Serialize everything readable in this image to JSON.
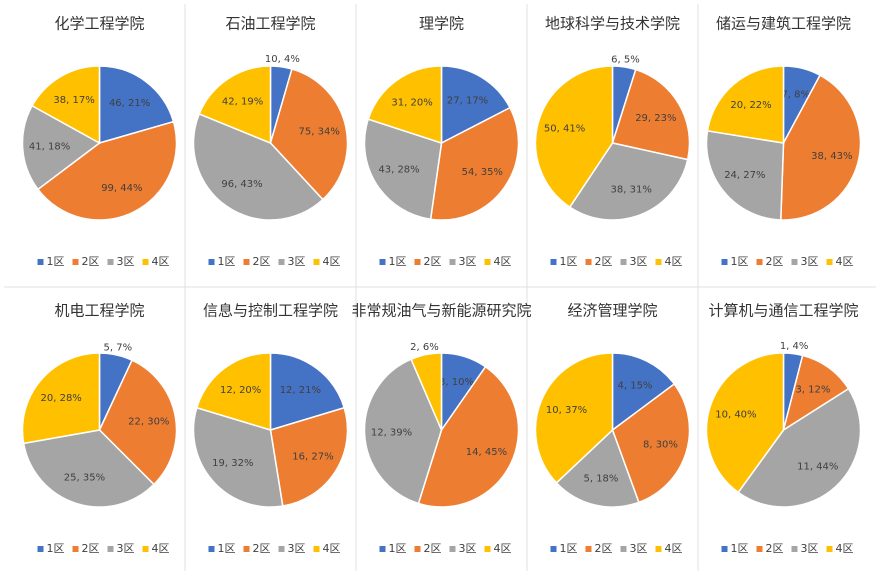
{
  "chart_data": [
    {
      "type": "pie",
      "title": "化学工程学院",
      "categories": [
        "1区",
        "2区",
        "3区",
        "4区"
      ],
      "values": [
        46,
        99,
        41,
        38
      ],
      "value_labels": [
        "46, 21%",
        "99, 44%",
        "41, 18%",
        "38, 17%"
      ],
      "colors": [
        "#4472c4",
        "#ed7d31",
        "#a5a5a5",
        "#ffc000"
      ],
      "legend": "bottom"
    },
    {
      "type": "pie",
      "title": "石油工程学院",
      "categories": [
        "1区",
        "2区",
        "3区",
        "4区"
      ],
      "values": [
        10,
        75,
        96,
        42
      ],
      "value_labels": [
        "10, 4%",
        "75, 34%",
        "96, 43%",
        "42, 19%"
      ],
      "colors": [
        "#4472c4",
        "#ed7d31",
        "#a5a5a5",
        "#ffc000"
      ],
      "legend": "bottom"
    },
    {
      "type": "pie",
      "title": "理学院",
      "categories": [
        "1区",
        "2区",
        "3区",
        "4区"
      ],
      "values": [
        27,
        54,
        43,
        31
      ],
      "value_labels": [
        "27, 17%",
        "54, 35%",
        "43, 28%",
        "31, 20%"
      ],
      "colors": [
        "#4472c4",
        "#ed7d31",
        "#a5a5a5",
        "#ffc000"
      ],
      "legend": "bottom"
    },
    {
      "type": "pie",
      "title": "地球科学与技术学院",
      "categories": [
        "1区",
        "2区",
        "3区",
        "4区"
      ],
      "values": [
        6,
        29,
        38,
        50
      ],
      "value_labels": [
        "6, 5%",
        "29, 23%",
        "38, 31%",
        "50, 41%"
      ],
      "colors": [
        "#4472c4",
        "#ed7d31",
        "#a5a5a5",
        "#ffc000"
      ],
      "legend": "bottom"
    },
    {
      "type": "pie",
      "title": "储运与建筑工程学院",
      "categories": [
        "1区",
        "2区",
        "3区",
        "4区"
      ],
      "values": [
        7,
        38,
        24,
        20
      ],
      "value_labels": [
        "7, 8%",
        "38, 43%",
        "24, 27%",
        "20, 22%"
      ],
      "colors": [
        "#4472c4",
        "#ed7d31",
        "#a5a5a5",
        "#ffc000"
      ],
      "legend": "bottom"
    },
    {
      "type": "pie",
      "title": "机电工程学院",
      "categories": [
        "1区",
        "2区",
        "3区",
        "4区"
      ],
      "values": [
        5,
        22,
        25,
        20
      ],
      "value_labels": [
        "5, 7%",
        "22, 30%",
        "25, 35%",
        "20, 28%"
      ],
      "colors": [
        "#4472c4",
        "#ed7d31",
        "#a5a5a5",
        "#ffc000"
      ],
      "legend": "bottom"
    },
    {
      "type": "pie",
      "title": "信息与控制工程学院",
      "categories": [
        "1区",
        "2区",
        "3区",
        "4区"
      ],
      "values": [
        12,
        16,
        19,
        12
      ],
      "value_labels": [
        "12, 21%",
        "16, 27%",
        "19, 32%",
        "12, 20%"
      ],
      "colors": [
        "#4472c4",
        "#ed7d31",
        "#a5a5a5",
        "#ffc000"
      ],
      "legend": "bottom"
    },
    {
      "type": "pie",
      "title": "非常规油气与新能源研究院",
      "categories": [
        "1区",
        "2区",
        "3区",
        "4区"
      ],
      "values": [
        3,
        14,
        12,
        2
      ],
      "value_labels": [
        "3, 10%",
        "14, 45%",
        "12, 39%",
        "2, 6%"
      ],
      "colors": [
        "#4472c4",
        "#ed7d31",
        "#a5a5a5",
        "#ffc000"
      ],
      "legend": "bottom"
    },
    {
      "type": "pie",
      "title": "经济管理学院",
      "categories": [
        "1区",
        "2区",
        "3区",
        "4区"
      ],
      "values": [
        4,
        8,
        5,
        10
      ],
      "value_labels": [
        "4, 15%",
        "8, 30%",
        "5, 18%",
        "10, 37%"
      ],
      "colors": [
        "#4472c4",
        "#ed7d31",
        "#a5a5a5",
        "#ffc000"
      ],
      "legend": "bottom"
    },
    {
      "type": "pie",
      "title": "计算机与通信工程学院",
      "categories": [
        "1区",
        "2区",
        "3区",
        "4区"
      ],
      "values": [
        1,
        3,
        11,
        10
      ],
      "value_labels": [
        "1, 4%",
        "3, 12%",
        "11, 44%",
        "10, 40%"
      ],
      "colors": [
        "#4472c4",
        "#ed7d31",
        "#a5a5a5",
        "#ffc000"
      ],
      "legend": "bottom"
    }
  ]
}
